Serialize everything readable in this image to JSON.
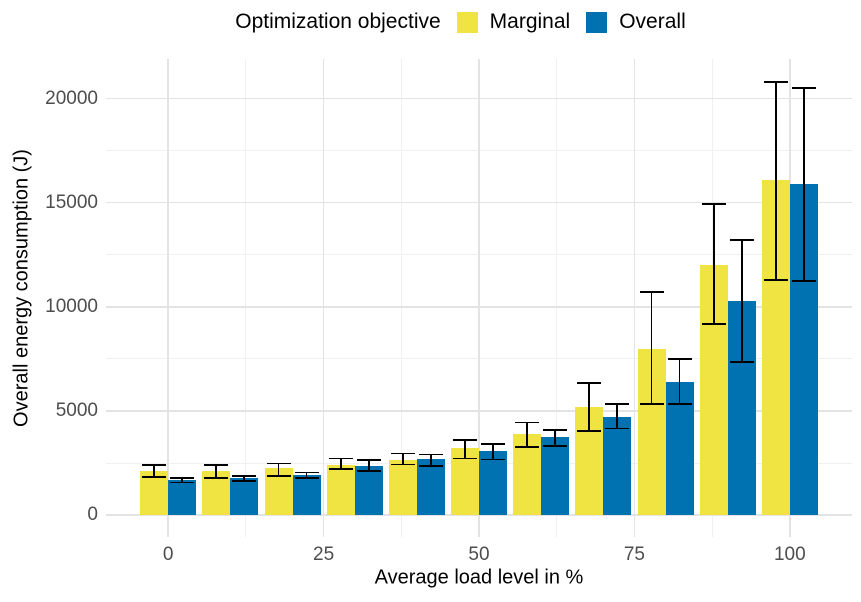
{
  "legend": {
    "title": "Optimization objective"
  },
  "chart_data": {
    "type": "bar",
    "title": "",
    "xlabel": "Average load level in %",
    "ylabel": "Overall energy consumption (J)",
    "legend_title": "Optimization objective",
    "legend_position": "top",
    "grid": true,
    "error_bars": true,
    "categories": [
      0,
      10,
      20,
      30,
      40,
      50,
      60,
      70,
      80,
      90,
      100
    ],
    "series": [
      {
        "name": "Marginal",
        "color": "#F0E442",
        "values": [
          2120,
          2110,
          2240,
          2430,
          2670,
          3200,
          3900,
          5200,
          7980,
          12020,
          16070
        ],
        "err_low": [
          1840,
          1790,
          1880,
          2220,
          2430,
          2720,
          3290,
          4050,
          5330,
          9170,
          11300
        ],
        "err_high": [
          2400,
          2400,
          2480,
          2720,
          2960,
          3600,
          4450,
          6360,
          10730,
          14930,
          20800
        ]
      },
      {
        "name": "Overall",
        "color": "#0072B2",
        "values": [
          1670,
          1760,
          1950,
          2360,
          2700,
          3080,
          3740,
          4720,
          6390,
          10290,
          15880
        ],
        "err_low": [
          1570,
          1640,
          1790,
          2110,
          2350,
          2670,
          3310,
          4160,
          5330,
          7350,
          11260
        ],
        "err_high": [
          1790,
          1870,
          2050,
          2640,
          2910,
          3400,
          4100,
          5330,
          7490,
          13210,
          20510
        ]
      }
    ],
    "x_ticks": [
      0,
      25,
      50,
      75,
      100
    ],
    "y_ticks": [
      0,
      5000,
      10000,
      15000,
      20000
    ],
    "x_minor": [
      12.5,
      37.5,
      62.5,
      87.5
    ],
    "y_minor": [
      2500,
      7500,
      12500,
      17500
    ],
    "xlim": [
      -10,
      110
    ],
    "ylim": [
      -1050,
      21900
    ],
    "colors": {
      "errorbar": "#000000",
      "grid_major": "#E3E3E3",
      "grid_minor": "#F0F0F0",
      "tick_text": "#4D4D4D",
      "title_text": "#000000",
      "background": "#FFFFFF"
    }
  }
}
